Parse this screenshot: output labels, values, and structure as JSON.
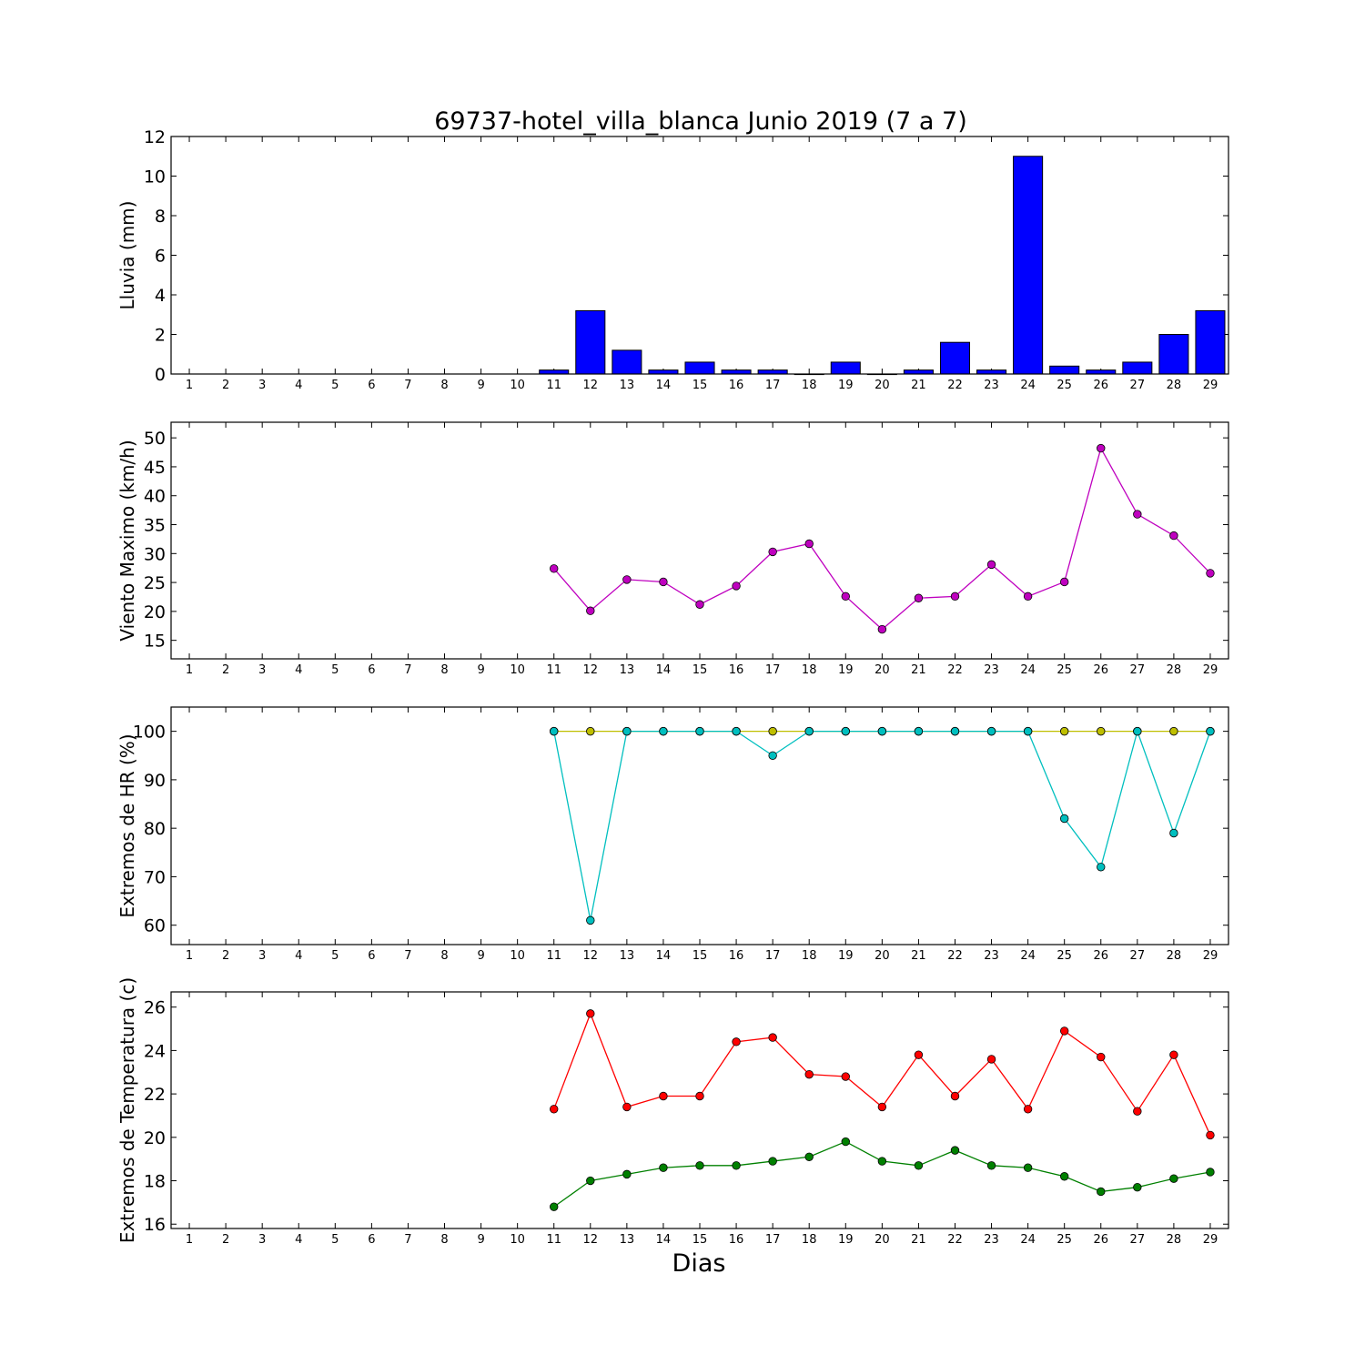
{
  "title": "69737-hotel_villa_blanca Junio 2019  (7 a 7)",
  "xlabel": "Dias",
  "chart_data": [
    {
      "type": "bar",
      "ylabel": "Lluvia (mm)",
      "categories": [
        "1",
        "2",
        "3",
        "4",
        "5",
        "6",
        "7",
        "8",
        "9",
        "10",
        "11",
        "12",
        "13",
        "14",
        "15",
        "16",
        "17",
        "18",
        "19",
        "20",
        "21",
        "22",
        "23",
        "24",
        "25",
        "26",
        "27",
        "28",
        "29"
      ],
      "ylim": [
        0,
        12
      ],
      "yticks": [
        0,
        2,
        4,
        6,
        8,
        10,
        12
      ],
      "series": [
        {
          "color": "#0000ff",
          "values": [
            null,
            null,
            null,
            null,
            null,
            null,
            null,
            null,
            null,
            null,
            0.2,
            3.2,
            1.2,
            0.2,
            0.6,
            0.2,
            0.2,
            0.0,
            0.6,
            0.0,
            0.2,
            1.6,
            0.2,
            11.0,
            0.4,
            0.2,
            0.6,
            2.0,
            3.2
          ]
        }
      ]
    },
    {
      "type": "line",
      "ylabel": "Viento Maximo (km/h)",
      "categories": [
        "1",
        "2",
        "3",
        "4",
        "5",
        "6",
        "7",
        "8",
        "9",
        "10",
        "11",
        "12",
        "13",
        "14",
        "15",
        "16",
        "17",
        "18",
        "19",
        "20",
        "21",
        "22",
        "23",
        "24",
        "25",
        "26",
        "27",
        "28",
        "29"
      ],
      "ylim": [
        11.8,
        52.7
      ],
      "yticks": [
        15,
        20,
        25,
        30,
        35,
        40,
        45,
        50
      ],
      "series": [
        {
          "color": "#bf00bf",
          "values": [
            null,
            null,
            null,
            null,
            null,
            null,
            null,
            null,
            null,
            null,
            27.4,
            20.1,
            25.5,
            25.1,
            21.2,
            24.4,
            30.3,
            31.7,
            22.6,
            16.9,
            22.3,
            22.6,
            28.1,
            22.6,
            25.1,
            48.2,
            36.8,
            33.1,
            26.6
          ]
        }
      ]
    },
    {
      "type": "line",
      "ylabel": "Extremos de HR (%)",
      "categories": [
        "1",
        "2",
        "3",
        "4",
        "5",
        "6",
        "7",
        "8",
        "9",
        "10",
        "11",
        "12",
        "13",
        "14",
        "15",
        "16",
        "17",
        "18",
        "19",
        "20",
        "21",
        "22",
        "23",
        "24",
        "25",
        "26",
        "27",
        "28",
        "29"
      ],
      "ylim": [
        56,
        105
      ],
      "yticks": [
        60,
        70,
        80,
        90,
        100
      ],
      "series": [
        {
          "color": "#bfbf00",
          "values": [
            null,
            null,
            null,
            null,
            null,
            null,
            null,
            null,
            null,
            null,
            100,
            100,
            100,
            100,
            100,
            100,
            100,
            100,
            100,
            100,
            100,
            100,
            100,
            100,
            100,
            100,
            100,
            100,
            100
          ]
        },
        {
          "color": "#00bfbf",
          "values": [
            null,
            null,
            null,
            null,
            null,
            null,
            null,
            null,
            null,
            null,
            100,
            61,
            100,
            100,
            100,
            100,
            95,
            100,
            100,
            100,
            100,
            100,
            100,
            100,
            82,
            72,
            100,
            79,
            100
          ]
        }
      ]
    },
    {
      "type": "line",
      "ylabel": "Extremos de Temperatura (c)",
      "categories": [
        "1",
        "2",
        "3",
        "4",
        "5",
        "6",
        "7",
        "8",
        "9",
        "10",
        "11",
        "12",
        "13",
        "14",
        "15",
        "16",
        "17",
        "18",
        "19",
        "20",
        "21",
        "22",
        "23",
        "24",
        "25",
        "26",
        "27",
        "28",
        "29"
      ],
      "ylim": [
        15.8,
        26.7
      ],
      "yticks": [
        16,
        18,
        20,
        22,
        24,
        26
      ],
      "series": [
        {
          "color": "#ff0000",
          "values": [
            null,
            null,
            null,
            null,
            null,
            null,
            null,
            null,
            null,
            null,
            21.3,
            25.7,
            21.4,
            21.9,
            21.9,
            24.4,
            24.6,
            22.9,
            22.8,
            21.4,
            23.8,
            21.9,
            23.6,
            21.3,
            24.9,
            23.7,
            21.2,
            23.8,
            20.1
          ]
        },
        {
          "color": "#008000",
          "values": [
            null,
            null,
            null,
            null,
            null,
            null,
            null,
            null,
            null,
            null,
            16.8,
            18.0,
            18.3,
            18.6,
            18.7,
            18.7,
            18.9,
            19.1,
            19.8,
            18.9,
            18.7,
            19.4,
            18.7,
            18.6,
            18.2,
            17.5,
            17.7,
            18.1,
            18.4
          ]
        }
      ]
    }
  ]
}
